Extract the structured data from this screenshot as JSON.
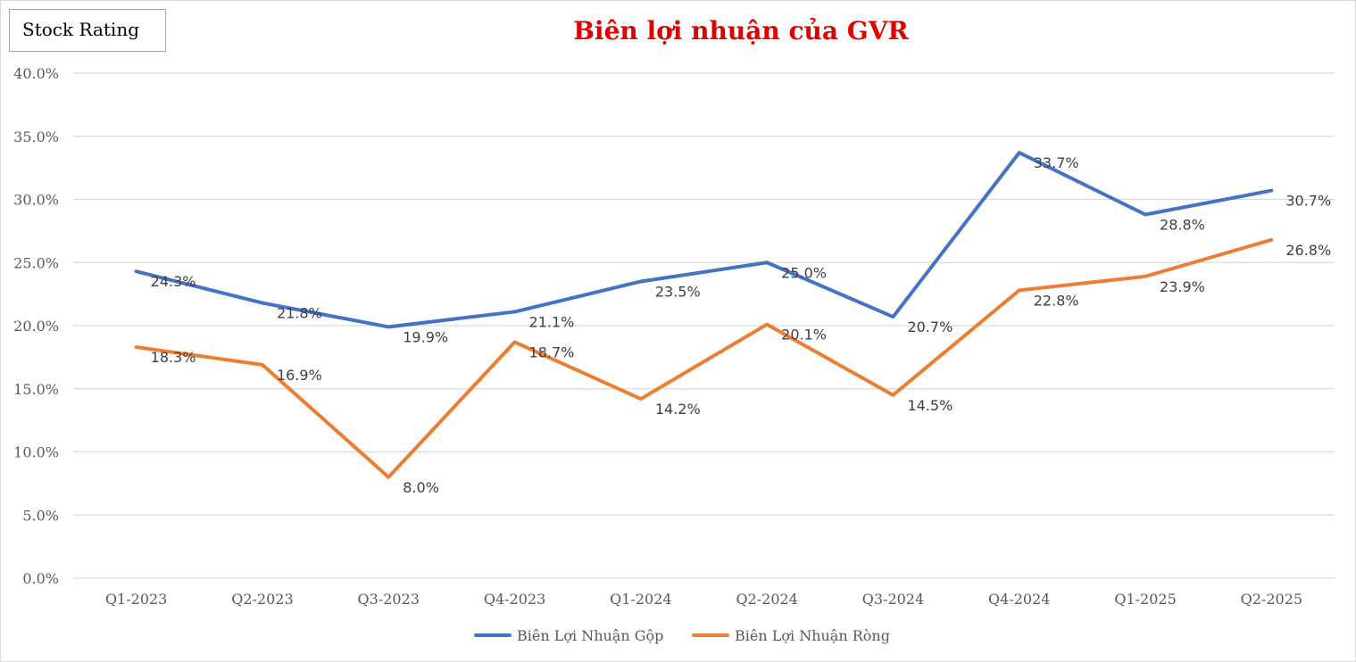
{
  "badge": {
    "label": "Stock Rating"
  },
  "chart_data": {
    "type": "line",
    "title": "Biên lợi nhuận của GVR",
    "categories": [
      "Q1-2023",
      "Q2-2023",
      "Q3-2023",
      "Q4-2023",
      "Q1-2024",
      "Q2-2024",
      "Q3-2024",
      "Q4-2024",
      "Q1-2025",
      "Q2-2025"
    ],
    "ylim": [
      0,
      40
    ],
    "yticks": [
      0,
      5,
      10,
      15,
      20,
      25,
      30,
      35,
      40
    ],
    "ytick_labels": [
      "0.0%",
      "5.0%",
      "10.0%",
      "15.0%",
      "20.0%",
      "25.0%",
      "30.0%",
      "35.0%",
      "40.0%"
    ],
    "grid": true,
    "legend": "bottom",
    "series": [
      {
        "name": "Biên Lợi Nhuận Gộp",
        "color": "#4472c4",
        "values": [
          24.3,
          21.8,
          19.9,
          21.1,
          23.5,
          25.0,
          20.7,
          33.7,
          28.8,
          30.7
        ],
        "labels": [
          "24.3%",
          "21.8%",
          "19.9%",
          "21.1%",
          "23.5%",
          "25.0%",
          "20.7%",
          "33.7%",
          "28.8%",
          "30.7%"
        ]
      },
      {
        "name": "Biên Lợi Nhuận Ròng",
        "color": "#ed7d31",
        "values": [
          18.3,
          16.9,
          8.0,
          18.7,
          14.2,
          20.1,
          14.5,
          22.8,
          23.9,
          26.8
        ],
        "labels": [
          "18.3%",
          "16.9%",
          "8.0%",
          "18.7%",
          "14.2%",
          "20.1%",
          "14.5%",
          "22.8%",
          "23.9%",
          "26.8%"
        ]
      }
    ]
  }
}
